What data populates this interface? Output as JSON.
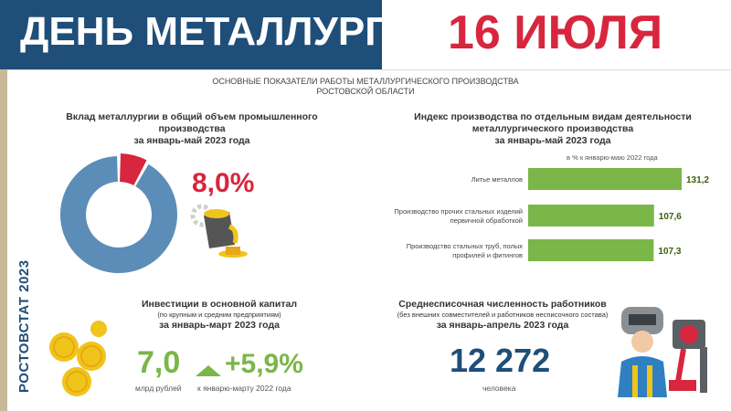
{
  "header": {
    "title": "ДЕНЬ МЕТАЛЛУРГА",
    "date": "16 ИЮЛЯ"
  },
  "side_label": "РОСТОВСТАТ 2023",
  "subtitle": {
    "line1": "ОСНОВНЫЕ ПОКАЗАТЕЛИ РАБОТЫ МЕТАЛЛУРГИЧЕСКОГО ПРОИЗВОДСТВА",
    "line2": "РОСТОВСКОЙ ОБЛАСТИ"
  },
  "share_block": {
    "title_line1": "Вклад металлургии в общий объем промышленного производства",
    "title_line2": "за январь-май 2023 года",
    "value_label": "8,0%"
  },
  "index_block": {
    "title_line1": "Индекс производства по отдельным видам деятельности",
    "title_line2": "металлургического производства",
    "title_line3": "за январь-май 2023 года",
    "unit_note": "в % к январю-маю 2022 года"
  },
  "invest_block": {
    "title": "Инвестиции в основной капитал",
    "note": "(по крупным и средним предприятиям)",
    "period": "за январь-март 2023 года",
    "value": "7,0",
    "value_caption": "млрд рублей",
    "growth": "+5,9%",
    "growth_caption": "к январю-марту 2022 года"
  },
  "workers_block": {
    "title": "Среднесписочная численность работников",
    "note": "(без внешних совместителей и работников несписочного состава)",
    "period": "за январь-апрель 2023 года",
    "value": "12 272",
    "value_caption": "человека"
  },
  "colors": {
    "navy": "#1f4e79",
    "red": "#d7263d",
    "green": "#7ab648",
    "donut_blue": "#5b8db8",
    "gold": "#f0c419"
  },
  "chart_data": [
    {
      "type": "pie",
      "title": "Вклад металлургии в общий объем промышленного производства",
      "series": [
        {
          "values": [
            8.0,
            92.0
          ]
        }
      ]
    },
    {
      "type": "bar",
      "orientation": "horizontal",
      "title": "Индекс производства по отдельным видам деятельности металлургического производства",
      "categories": [
        [
          "Литье металлов"
        ],
        [
          "Производство прочих стальных изделий",
          "первичной обработкой"
        ],
        [
          "Производство стальных труб,  полых",
          "профилей и фитингов"
        ]
      ],
      "values": [
        131.2,
        107.6,
        107.3
      ],
      "value_labels": [
        "131,2",
        "107,6",
        "107,3"
      ]
    }
  ]
}
